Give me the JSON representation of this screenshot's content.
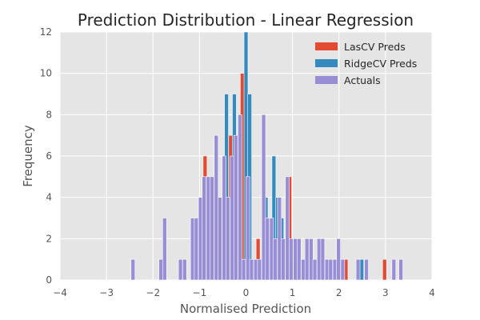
{
  "chart_data": {
    "type": "bar",
    "title": "Prediction Distribution - Linear Regression",
    "xlabel": "Normalised Prediction",
    "ylabel": "Frequency",
    "xlim": [
      -4,
      4
    ],
    "ylim": [
      0,
      12
    ],
    "xticks": [
      -4,
      -3,
      -2,
      -1,
      0,
      1,
      2,
      3,
      4
    ],
    "xtick_labels": [
      "−4",
      "−3",
      "−2",
      "−1",
      "0",
      "1",
      "2",
      "3",
      "4"
    ],
    "yticks": [
      0,
      2,
      4,
      6,
      8,
      10,
      12
    ],
    "ytick_labels": [
      "0",
      "2",
      "4",
      "6",
      "8",
      "10",
      "12"
    ],
    "grid": true,
    "legend_position": "top-right",
    "bin_width": 0.085,
    "series": [
      {
        "name": "LasCV Preds",
        "color": "#E24A33",
        "bars": [
          {
            "x": -0.88,
            "y": 6
          },
          {
            "x": -0.33,
            "y": 7
          },
          {
            "x": -0.08,
            "y": 10
          },
          {
            "x": 0.26,
            "y": 2
          },
          {
            "x": 0.94,
            "y": 5
          },
          {
            "x": 1.03,
            "y": 1
          },
          {
            "x": 2.15,
            "y": 1
          },
          {
            "x": 2.98,
            "y": 1
          }
        ]
      },
      {
        "name": "RidgeCV Preds",
        "color": "#348ABD",
        "bars": [
          {
            "x": -0.42,
            "y": 9
          },
          {
            "x": -0.25,
            "y": 9
          },
          {
            "x": 0.0,
            "y": 12
          },
          {
            "x": 0.08,
            "y": 9
          },
          {
            "x": 0.43,
            "y": 4
          },
          {
            "x": 0.6,
            "y": 6
          },
          {
            "x": 0.68,
            "y": 4
          },
          {
            "x": 0.77,
            "y": 3
          },
          {
            "x": 1.11,
            "y": 1
          },
          {
            "x": 2.49,
            "y": 1
          }
        ]
      },
      {
        "name": "Actuals",
        "color": "#988ED5",
        "bars": [
          {
            "x": -2.43,
            "y": 1
          },
          {
            "x": -1.83,
            "y": 1
          },
          {
            "x": -1.75,
            "y": 3
          },
          {
            "x": -1.41,
            "y": 1
          },
          {
            "x": -1.32,
            "y": 1
          },
          {
            "x": -1.15,
            "y": 3
          },
          {
            "x": -1.07,
            "y": 3
          },
          {
            "x": -0.98,
            "y": 4
          },
          {
            "x": -0.9,
            "y": 5
          },
          {
            "x": -0.81,
            "y": 5
          },
          {
            "x": -0.73,
            "y": 5
          },
          {
            "x": -0.64,
            "y": 7
          },
          {
            "x": -0.56,
            "y": 4
          },
          {
            "x": -0.47,
            "y": 6
          },
          {
            "x": -0.39,
            "y": 4
          },
          {
            "x": -0.3,
            "y": 6
          },
          {
            "x": -0.22,
            "y": 7
          },
          {
            "x": -0.13,
            "y": 8
          },
          {
            "x": -0.05,
            "y": 1
          },
          {
            "x": 0.04,
            "y": 5
          },
          {
            "x": 0.12,
            "y": 1
          },
          {
            "x": 0.21,
            "y": 1
          },
          {
            "x": 0.29,
            "y": 1
          },
          {
            "x": 0.38,
            "y": 8
          },
          {
            "x": 0.46,
            "y": 3
          },
          {
            "x": 0.55,
            "y": 3
          },
          {
            "x": 0.63,
            "y": 2
          },
          {
            "x": 0.72,
            "y": 4
          },
          {
            "x": 0.8,
            "y": 2
          },
          {
            "x": 0.89,
            "y": 5
          },
          {
            "x": 0.97,
            "y": 2
          },
          {
            "x": 1.06,
            "y": 2
          },
          {
            "x": 1.14,
            "y": 2
          },
          {
            "x": 1.23,
            "y": 1
          },
          {
            "x": 1.31,
            "y": 2
          },
          {
            "x": 1.4,
            "y": 2
          },
          {
            "x": 1.48,
            "y": 1
          },
          {
            "x": 1.57,
            "y": 2
          },
          {
            "x": 1.65,
            "y": 2
          },
          {
            "x": 1.74,
            "y": 1
          },
          {
            "x": 1.82,
            "y": 1
          },
          {
            "x": 1.91,
            "y": 1
          },
          {
            "x": 1.99,
            "y": 2
          },
          {
            "x": 2.08,
            "y": 1
          },
          {
            "x": 2.41,
            "y": 1
          },
          {
            "x": 2.59,
            "y": 1
          },
          {
            "x": 3.18,
            "y": 1
          },
          {
            "x": 3.33,
            "y": 1
          }
        ]
      }
    ]
  }
}
